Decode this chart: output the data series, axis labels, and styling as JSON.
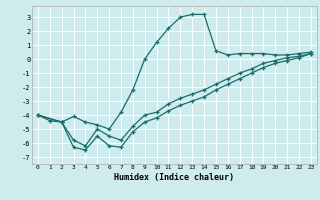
{
  "xlabel": "Humidex (Indice chaleur)",
  "background_color": "#ceeced",
  "grid_color": "#ffffff",
  "line_color": "#1a6b6b",
  "xlim": [
    -0.5,
    23.5
  ],
  "ylim": [
    -7.5,
    3.8
  ],
  "xticks": [
    0,
    1,
    2,
    3,
    4,
    5,
    6,
    7,
    8,
    9,
    10,
    11,
    12,
    13,
    14,
    15,
    16,
    17,
    18,
    19,
    20,
    21,
    22,
    23
  ],
  "yticks": [
    -7,
    -6,
    -5,
    -4,
    -3,
    -2,
    -1,
    0,
    1,
    2,
    3
  ],
  "series1_x": [
    0,
    1,
    2,
    3,
    4,
    5,
    6,
    7,
    8,
    9,
    10,
    11,
    12,
    13,
    14,
    15,
    16,
    17,
    18,
    19,
    20,
    21,
    22,
    23
  ],
  "series1_y": [
    -4.0,
    -4.4,
    -4.5,
    -4.1,
    -4.5,
    -4.7,
    -5.0,
    -3.8,
    -2.2,
    0.0,
    1.2,
    2.2,
    3.0,
    3.2,
    3.2,
    0.6,
    0.3,
    0.4,
    0.4,
    0.4,
    0.3,
    0.3,
    0.4,
    0.5
  ],
  "series2_x": [
    0,
    2,
    3,
    4,
    5,
    6,
    7,
    8,
    9,
    10,
    11,
    12,
    13,
    14,
    15,
    16,
    17,
    18,
    19,
    20,
    21,
    22,
    23
  ],
  "series2_y": [
    -4.0,
    -4.5,
    -6.3,
    -6.5,
    -5.5,
    -6.2,
    -6.3,
    -5.2,
    -4.5,
    -4.2,
    -3.7,
    -3.3,
    -3.0,
    -2.7,
    -2.2,
    -1.8,
    -1.4,
    -1.0,
    -0.6,
    -0.3,
    -0.1,
    0.1,
    0.4
  ],
  "series3_x": [
    0,
    2,
    3,
    4,
    5,
    6,
    7,
    8,
    9,
    10,
    11,
    12,
    13,
    14,
    15,
    16,
    17,
    18,
    19,
    20,
    21,
    22,
    23
  ],
  "series3_y": [
    -4.0,
    -4.5,
    -5.8,
    -6.2,
    -5.0,
    -5.5,
    -5.8,
    -4.8,
    -4.0,
    -3.8,
    -3.2,
    -2.8,
    -2.5,
    -2.2,
    -1.8,
    -1.4,
    -1.0,
    -0.7,
    -0.3,
    -0.1,
    0.1,
    0.2,
    0.4
  ]
}
